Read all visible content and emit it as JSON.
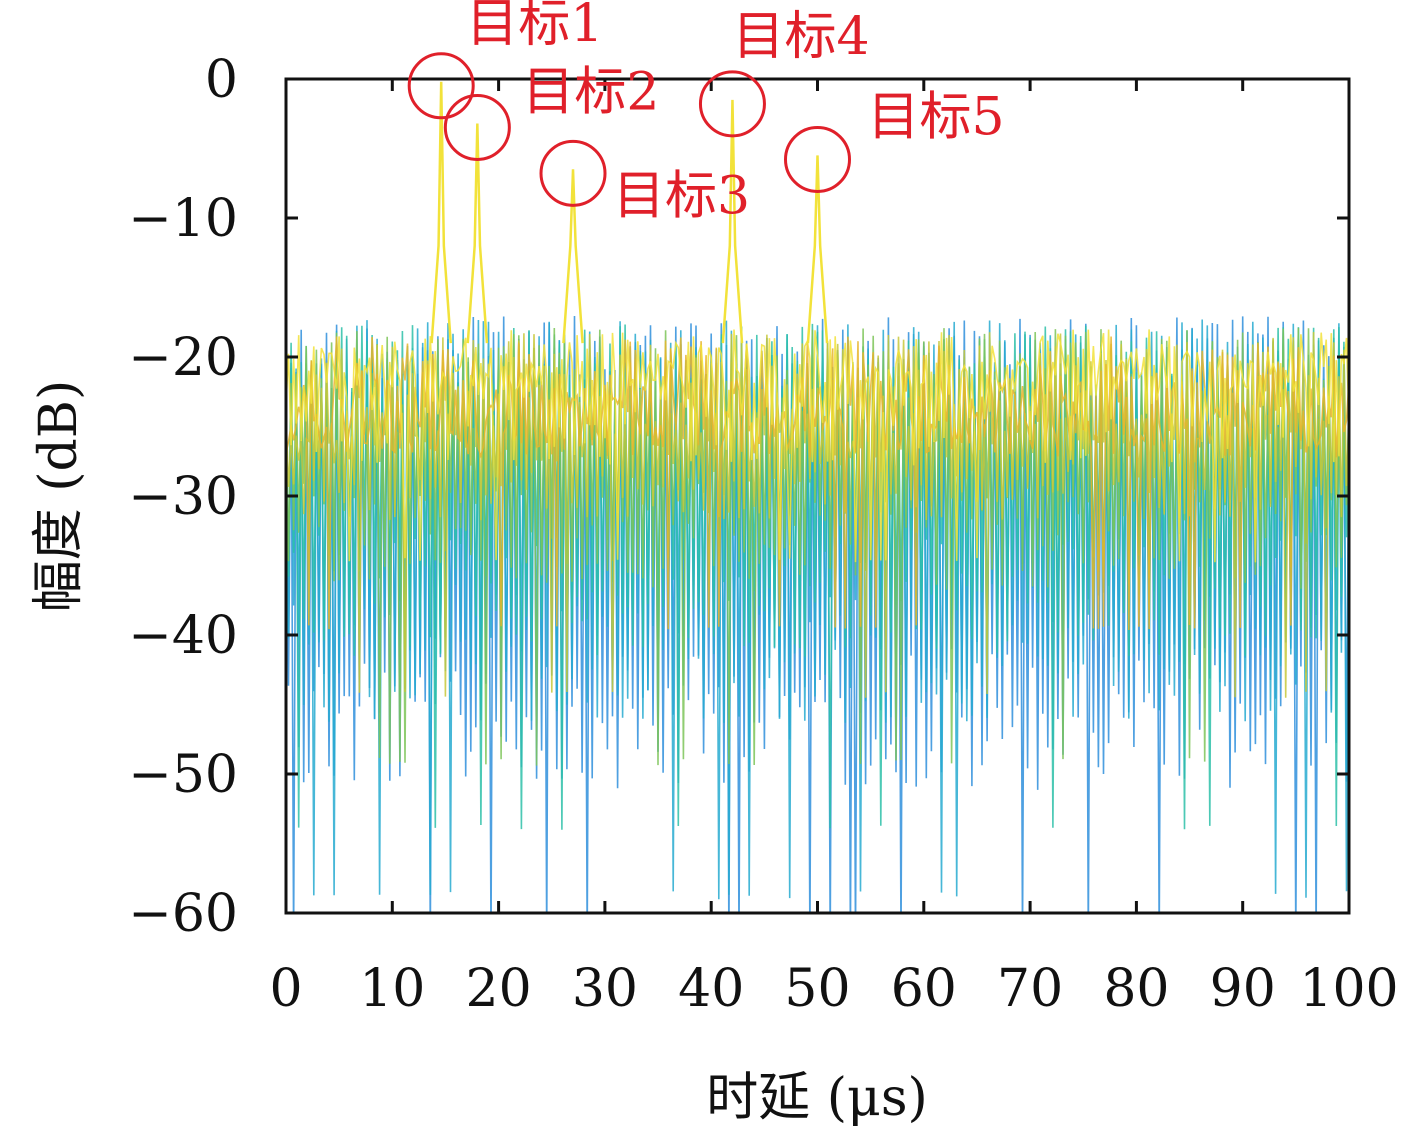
{
  "chart_data": {
    "type": "line",
    "xlabel": "时延 (μs)",
    "ylabel": "幅度 (dB)",
    "xlim": [
      0,
      100
    ],
    "ylim": [
      -60,
      0
    ],
    "xticks": [
      0,
      10,
      20,
      30,
      40,
      50,
      60,
      70,
      80,
      90,
      100
    ],
    "yticks": [
      0,
      -10,
      -20,
      -30,
      -40,
      -50,
      -60
    ],
    "ytick_labels": [
      "0",
      "−10",
      "−20",
      "−30",
      "−40",
      "−50",
      "−60"
    ],
    "grid": false,
    "legend": "none",
    "series_colors": [
      "#2f8fdc",
      "#27aad0",
      "#2dbfa8",
      "#7cc458",
      "#c7c83a",
      "#e6b52c",
      "#f2e23a"
    ],
    "noise_floor_db": [
      -20,
      -50
    ],
    "targets": [
      {
        "label": "目标1",
        "x": 14.6,
        "y": -0.2
      },
      {
        "label": "目标2",
        "x": 18.0,
        "y": -3.2
      },
      {
        "label": "目标3",
        "x": 27.0,
        "y": -6.5
      },
      {
        "label": "目标4",
        "x": 42.0,
        "y": -1.5
      },
      {
        "label": "目标5",
        "x": 50.0,
        "y": -5.5
      }
    ],
    "marker_color": "#e0202a"
  }
}
